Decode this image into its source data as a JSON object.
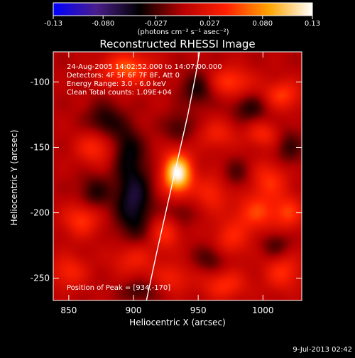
{
  "colorbar": {
    "ticks": [
      "-0.13",
      "-0.080",
      "-0.027",
      "0.027",
      "0.080",
      "0.13"
    ],
    "units": "(photons cm⁻² s⁻¹ asec⁻²)",
    "colors": [
      "#0000ff",
      "#4a1e8a",
      "#000000",
      "#b80000",
      "#ff2000",
      "#ffa500",
      "#ffffff"
    ]
  },
  "chart_data": {
    "type": "heatmap",
    "title": "Reconstructed RHESSI Image",
    "xlabel": "Heliocentric X (arcsec)",
    "ylabel": "Heliocentric Y (arcsec)",
    "xlim": [
      838,
      1030
    ],
    "ylim": [
      -267,
      -77
    ],
    "x_ticks": [
      850,
      900,
      950,
      1000
    ],
    "y_ticks": [
      -100,
      -150,
      -200,
      -250
    ],
    "clim": [
      -0.13,
      0.13
    ],
    "annotations": [
      "24-Aug-2005 14:02:52.000 to 14:07:00.000",
      "Detectors: 4F 5F 6F 7F 8F, Att 0",
      "Energy Range: 3.0 - 6.0 keV",
      "Clean     Total counts: 1.09E+04"
    ],
    "peak_label": "Position of Peak = [934,-170]",
    "peak": [
      934,
      -170
    ],
    "limb_curve": [
      [
        910,
        -267
      ],
      [
        918,
        -230
      ],
      [
        926,
        -195
      ],
      [
        934,
        -160
      ],
      [
        942,
        -125
      ],
      [
        948,
        -95
      ],
      [
        951,
        -77
      ]
    ],
    "sources": [
      {
        "x": 934,
        "y": -170,
        "value": 0.13,
        "sx": 8,
        "sy": 11
      },
      {
        "x": 895,
        "y": -90,
        "value": 0.06,
        "sx": 14,
        "sy": 9
      },
      {
        "x": 975,
        "y": -100,
        "value": 0.05,
        "sx": 12,
        "sy": 8
      },
      {
        "x": 1015,
        "y": -110,
        "value": 0.05,
        "sx": 10,
        "sy": 8
      },
      {
        "x": 1000,
        "y": -140,
        "value": 0.04,
        "sx": 9,
        "sy": 7
      },
      {
        "x": 965,
        "y": -140,
        "value": 0.035,
        "sx": 10,
        "sy": 8
      },
      {
        "x": 870,
        "y": -150,
        "value": 0.045,
        "sx": 10,
        "sy": 9
      },
      {
        "x": 1005,
        "y": -175,
        "value": 0.045,
        "sx": 10,
        "sy": 10
      },
      {
        "x": 960,
        "y": -185,
        "value": 0.04,
        "sx": 9,
        "sy": 10
      },
      {
        "x": 995,
        "y": -200,
        "value": 0.05,
        "sx": 12,
        "sy": 10
      },
      {
        "x": 1020,
        "y": -200,
        "value": 0.045,
        "sx": 8,
        "sy": 9
      },
      {
        "x": 860,
        "y": -205,
        "value": 0.05,
        "sx": 10,
        "sy": 9
      },
      {
        "x": 925,
        "y": -215,
        "value": 0.045,
        "sx": 8,
        "sy": 9
      },
      {
        "x": 975,
        "y": -220,
        "value": 0.04,
        "sx": 10,
        "sy": 10
      },
      {
        "x": 850,
        "y": -245,
        "value": 0.04,
        "sx": 10,
        "sy": 9
      },
      {
        "x": 900,
        "y": -235,
        "value": 0.04,
        "sx": 12,
        "sy": 9
      },
      {
        "x": 970,
        "y": -255,
        "value": 0.045,
        "sx": 12,
        "sy": 8
      },
      {
        "x": 1015,
        "y": -245,
        "value": 0.045,
        "sx": 10,
        "sy": 10
      },
      {
        "x": 930,
        "y": -250,
        "value": 0.035,
        "sx": 10,
        "sy": 8
      },
      {
        "x": 900,
        "y": -190,
        "value": -0.06,
        "sx": 10,
        "sy": 22
      },
      {
        "x": 878,
        "y": -130,
        "value": -0.04,
        "sx": 10,
        "sy": 10
      },
      {
        "x": 895,
        "y": -150,
        "value": -0.035,
        "sx": 8,
        "sy": 12
      },
      {
        "x": 870,
        "y": -185,
        "value": -0.035,
        "sx": 9,
        "sy": 10
      },
      {
        "x": 950,
        "y": -105,
        "value": -0.04,
        "sx": 9,
        "sy": 9
      },
      {
        "x": 990,
        "y": -120,
        "value": -0.035,
        "sx": 10,
        "sy": 8
      },
      {
        "x": 1020,
        "y": -150,
        "value": -0.03,
        "sx": 8,
        "sy": 10
      },
      {
        "x": 935,
        "y": -135,
        "value": -0.03,
        "sx": 8,
        "sy": 8
      },
      {
        "x": 980,
        "y": -170,
        "value": -0.025,
        "sx": 8,
        "sy": 8
      },
      {
        "x": 960,
        "y": -235,
        "value": -0.03,
        "sx": 9,
        "sy": 8
      },
      {
        "x": 1010,
        "y": -225,
        "value": -0.03,
        "sx": 8,
        "sy": 8
      },
      {
        "x": 905,
        "y": -260,
        "value": -0.03,
        "sx": 10,
        "sy": 6
      },
      {
        "x": 935,
        "y": -200,
        "value": -0.025,
        "sx": 8,
        "sy": 8
      }
    ]
  },
  "footer": {
    "timestamp": "9-Jul-2013 02:42"
  }
}
